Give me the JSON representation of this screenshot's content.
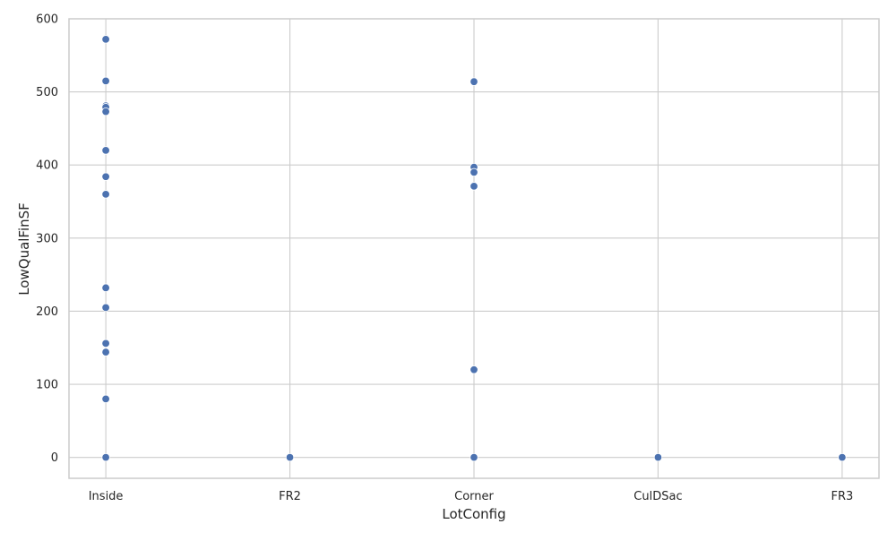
{
  "chart_data": {
    "type": "scatter",
    "title": "",
    "xlabel": "LotConfig",
    "ylabel": "LowQualFinSF",
    "categories": [
      "Inside",
      "FR2",
      "Corner",
      "CulDSac",
      "FR3"
    ],
    "ylim": [
      -28.6,
      600
    ],
    "y_ticks": [
      0,
      100,
      200,
      300,
      400,
      500,
      600
    ],
    "grid": true,
    "legend": "none",
    "colors": {
      "point": "#4c72b0",
      "point_edge": "#ffffff",
      "grid": "#cccccc",
      "spine": "#cccccc"
    },
    "points": [
      {
        "x": "Inside",
        "y": 572
      },
      {
        "x": "Inside",
        "y": 515
      },
      {
        "x": "Inside",
        "y": 481
      },
      {
        "x": "Inside",
        "y": 479
      },
      {
        "x": "Inside",
        "y": 473
      },
      {
        "x": "Inside",
        "y": 420
      },
      {
        "x": "Inside",
        "y": 384
      },
      {
        "x": "Inside",
        "y": 360
      },
      {
        "x": "Inside",
        "y": 232
      },
      {
        "x": "Inside",
        "y": 205
      },
      {
        "x": "Inside",
        "y": 156
      },
      {
        "x": "Inside",
        "y": 144
      },
      {
        "x": "Inside",
        "y": 80
      },
      {
        "x": "Inside",
        "y": 0
      },
      {
        "x": "FR2",
        "y": 0
      },
      {
        "x": "Corner",
        "y": 514
      },
      {
        "x": "Corner",
        "y": 397
      },
      {
        "x": "Corner",
        "y": 390
      },
      {
        "x": "Corner",
        "y": 371
      },
      {
        "x": "Corner",
        "y": 120
      },
      {
        "x": "Corner",
        "y": 0
      },
      {
        "x": "CulDSac",
        "y": 0
      },
      {
        "x": "FR3",
        "y": 0
      }
    ]
  }
}
